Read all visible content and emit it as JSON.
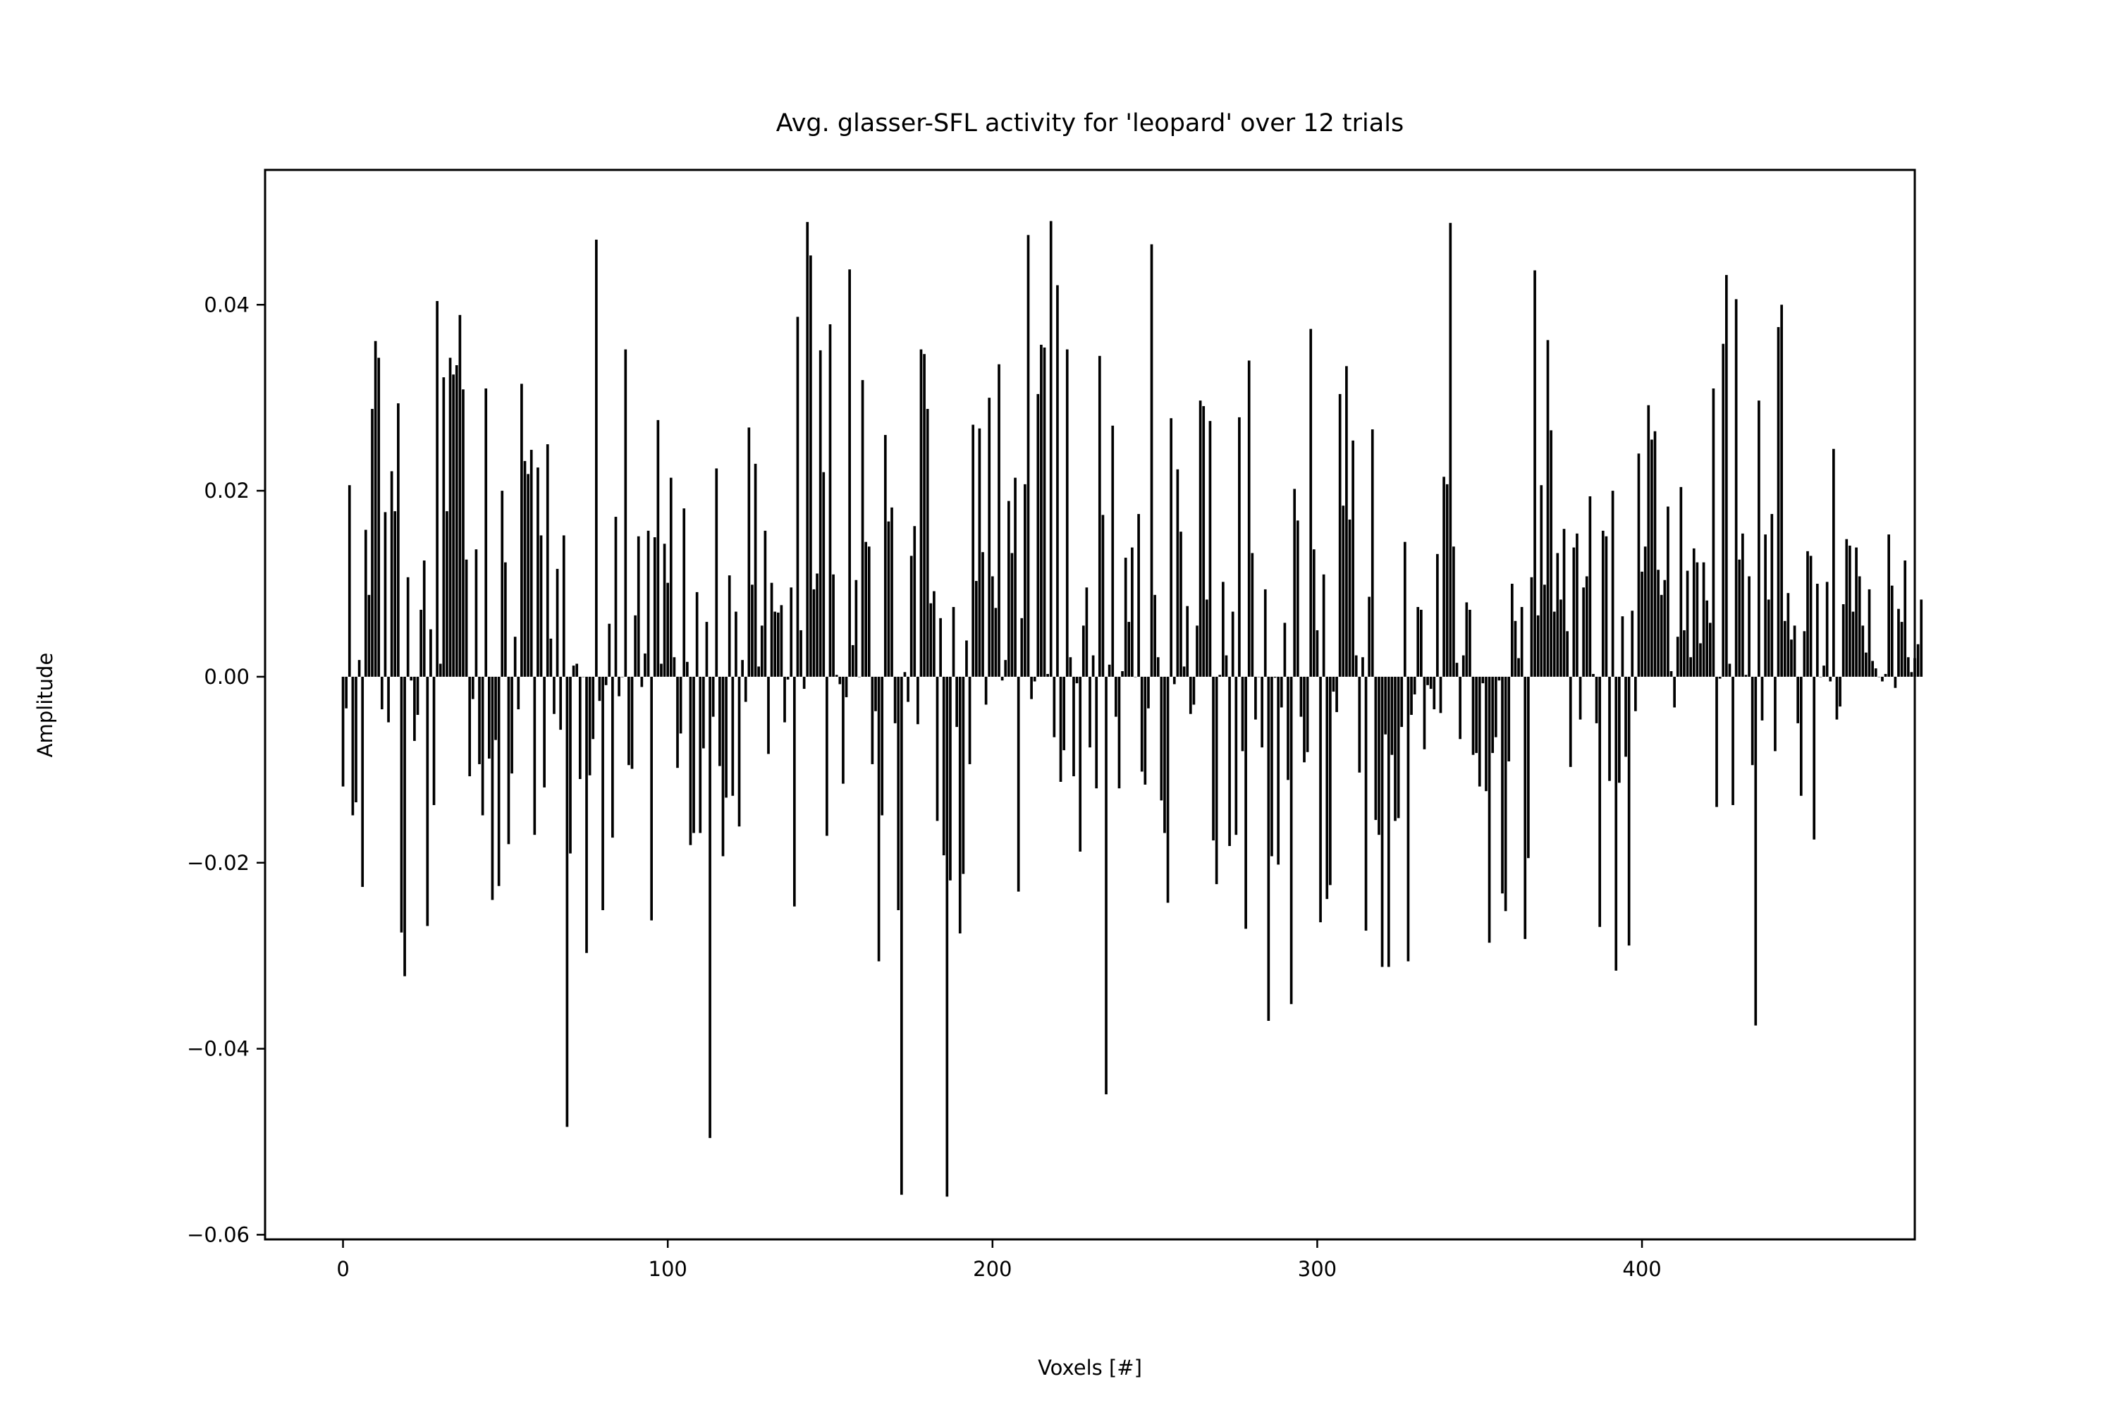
{
  "chart_data": {
    "type": "bar",
    "title": "Avg. glasser-SFL activity for 'leopard' over 12 trials",
    "xlabel": "Voxels [#]",
    "ylabel": "Amplitude",
    "xlim": [
      -24,
      484
    ],
    "ylim": [
      -0.0605,
      0.0545
    ],
    "grid": false,
    "legend": "none",
    "x_tick_values": [
      0,
      100,
      200,
      300,
      400
    ],
    "x_tick_labels": [
      "0",
      "100",
      "200",
      "300",
      "400"
    ],
    "y_tick_values": [
      0.04,
      0.02,
      0.0,
      -0.02,
      -0.04,
      -0.06
    ],
    "y_tick_labels": [
      "0.04",
      "0.02",
      "0.00",
      "−0.02",
      "−0.04",
      "−0.06"
    ],
    "bar_color": "#000000",
    "x_start": 0,
    "values": [
      -0.0118,
      -0.0034,
      0.0206,
      -0.0149,
      -0.0135,
      0.0018,
      -0.0226,
      0.0158,
      0.0088,
      0.0288,
      0.0361,
      0.0343,
      -0.0035,
      0.0177,
      -0.0049,
      0.0221,
      0.0178,
      0.0294,
      -0.0275,
      -0.0322,
      0.0107,
      -0.0004,
      -0.0069,
      -0.0041,
      0.0072,
      0.0125,
      -0.0268,
      0.0051,
      -0.0138,
      0.0404,
      0.0014,
      0.0322,
      0.0178,
      0.0343,
      0.0325,
      0.0335,
      0.0389,
      0.0309,
      0.0126,
      -0.0107,
      -0.0024,
      0.0137,
      -0.0094,
      -0.0149,
      0.031,
      -0.0088,
      -0.024,
      -0.0068,
      -0.0225,
      0.02,
      0.0123,
      -0.018,
      -0.0104,
      0.0043,
      -0.0035,
      0.0315,
      0.0232,
      0.0218,
      0.0244,
      -0.017,
      0.0225,
      0.0152,
      -0.0119,
      0.025,
      0.0041,
      -0.004,
      0.0116,
      -0.0057,
      0.0152,
      -0.0484,
      -0.019,
      0.0012,
      0.0014,
      -0.011,
      0.0,
      -0.0297,
      -0.0106,
      -0.0067,
      0.047,
      -0.0026,
      -0.0251,
      -0.0009,
      0.0057,
      -0.0173,
      0.0172,
      -0.0021,
      0.0,
      0.0352,
      -0.0095,
      -0.0099,
      0.0066,
      0.0151,
      -0.0011,
      0.0025,
      0.0157,
      -0.0262,
      0.015,
      0.0276,
      0.0014,
      0.0143,
      0.0101,
      0.0214,
      0.0021,
      -0.0098,
      -0.0061,
      0.0181,
      0.0016,
      -0.0181,
      -0.0168,
      0.0091,
      -0.0168,
      -0.0077,
      0.0059,
      -0.0496,
      -0.0043,
      0.0224,
      -0.0096,
      -0.0193,
      -0.013,
      0.0109,
      -0.0128,
      0.007,
      -0.0161,
      0.0018,
      -0.0027,
      0.0268,
      0.0099,
      0.0229,
      0.0011,
      0.0055,
      0.0157,
      -0.0083,
      0.0101,
      0.007,
      0.0069,
      0.0077,
      -0.0049,
      -0.0003,
      0.0096,
      -0.0247,
      0.0387,
      0.005,
      -0.0013,
      0.0489,
      0.0453,
      0.0094,
      0.0111,
      0.0351,
      0.022,
      -0.0171,
      0.0379,
      0.011,
      0.0002,
      -0.0008,
      -0.0115,
      -0.0022,
      0.0438,
      0.0034,
      0.0104,
      0.0,
      0.0319,
      0.0145,
      0.014,
      -0.0094,
      -0.0037,
      -0.0306,
      -0.0149,
      0.026,
      0.0167,
      0.0182,
      -0.005,
      -0.0251,
      -0.0557,
      0.0005,
      -0.0027,
      0.013,
      0.0162,
      -0.0051,
      0.0352,
      0.0347,
      0.0288,
      0.0079,
      0.0092,
      -0.0155,
      0.0063,
      -0.0192,
      -0.0559,
      -0.0219,
      0.0075,
      -0.0054,
      -0.0276,
      -0.0212,
      0.0039,
      -0.0094,
      0.0271,
      0.0103,
      0.0267,
      0.0134,
      -0.003,
      0.03,
      0.0108,
      0.0074,
      0.0336,
      -0.0004,
      0.0018,
      0.0189,
      0.0133,
      0.0214,
      -0.0231,
      0.0063,
      0.0207,
      0.0475,
      -0.0024,
      -0.0005,
      0.0304,
      0.0357,
      0.0354,
      0.0003,
      0.049,
      -0.0065,
      0.0421,
      -0.0113,
      -0.0079,
      0.0352,
      0.0021,
      -0.0107,
      -0.0007,
      -0.0188,
      0.0055,
      0.0096,
      -0.0076,
      0.0023,
      -0.012,
      0.0345,
      0.0174,
      -0.0449,
      0.0013,
      0.027,
      -0.0043,
      -0.012,
      0.0006,
      0.0128,
      0.0059,
      0.0139,
      0.0,
      0.0175,
      -0.0102,
      -0.0116,
      -0.0034,
      0.0465,
      0.0088,
      0.0021,
      -0.0133,
      -0.0168,
      -0.0243,
      0.0278,
      -0.0008,
      0.0223,
      0.0156,
      0.0011,
      0.0076,
      -0.004,
      -0.003,
      0.0055,
      0.0297,
      0.0291,
      0.0083,
      0.0275,
      -0.0176,
      -0.0223,
      0.0002,
      0.0102,
      0.0023,
      -0.0182,
      0.007,
      -0.017,
      0.0279,
      -0.008,
      -0.0271,
      0.034,
      0.0133,
      -0.0046,
      0.0,
      -0.0076,
      0.0094,
      -0.037,
      -0.0193,
      -0.0001,
      -0.0202,
      -0.0033,
      0.0058,
      -0.0111,
      -0.0352,
      0.0202,
      0.0168,
      -0.0043,
      -0.0092,
      -0.0081,
      0.0374,
      0.0137,
      0.005,
      -0.0264,
      0.011,
      -0.0239,
      -0.0224,
      -0.0016,
      -0.0038,
      0.0304,
      0.0184,
      0.0334,
      0.0169,
      0.0254,
      0.0023,
      -0.0103,
      0.0021,
      -0.0273,
      0.0086,
      0.0266,
      -0.0154,
      -0.017,
      -0.0312,
      -0.0062,
      -0.0312,
      -0.0084,
      -0.0155,
      -0.0152,
      -0.0054,
      0.0145,
      -0.0306,
      -0.0041,
      -0.0019,
      0.0075,
      0.0072,
      -0.0078,
      -0.0009,
      -0.0013,
      -0.0035,
      0.0132,
      -0.0039,
      0.0215,
      0.0207,
      0.0488,
      0.014,
      0.0015,
      -0.0067,
      0.0023,
      0.008,
      0.0072,
      -0.0084,
      -0.0082,
      -0.0118,
      -0.0007,
      -0.0123,
      -0.0286,
      -0.0082,
      -0.0065,
      -0.0004,
      -0.0233,
      -0.0252,
      -0.0091,
      0.01,
      0.006,
      0.002,
      0.0075,
      -0.0282,
      -0.0195,
      0.0107,
      0.0437,
      0.0066,
      0.0206,
      0.0099,
      0.0362,
      0.0265,
      0.007,
      0.0133,
      0.0083,
      0.0159,
      0.0049,
      -0.0097,
      0.0139,
      0.0154,
      -0.0046,
      0.0096,
      0.0108,
      0.0194,
      0.0003,
      -0.005,
      -0.0269,
      0.0157,
      0.0151,
      -0.0112,
      0.02,
      -0.0316,
      -0.0114,
      0.0065,
      -0.0086,
      -0.0289,
      0.0071,
      -0.0037,
      0.024,
      0.0113,
      0.014,
      0.0292,
      0.0255,
      0.0264,
      0.0115,
      0.0088,
      0.0104,
      0.0183,
      0.0006,
      -0.0033,
      0.0043,
      0.0204,
      0.005,
      0.0114,
      0.0021,
      0.0138,
      0.0123,
      0.0036,
      0.0123,
      0.0082,
      0.0058,
      0.031,
      -0.014,
      -0.0002,
      0.0358,
      0.0432,
      0.0014,
      -0.0138,
      0.0406,
      0.0126,
      0.0154,
      0.0002,
      0.0108,
      -0.0095,
      -0.0375,
      0.0297,
      -0.0047,
      0.0153,
      0.0083,
      0.0175,
      -0.008,
      0.0376,
      0.04,
      0.006,
      0.009,
      0.004,
      0.0055,
      -0.005,
      -0.0128,
      0.0049,
      0.0135,
      0.013,
      -0.0175,
      0.01,
      0.0,
      0.0012,
      0.0102,
      -0.0005,
      0.0245,
      -0.0046,
      -0.0032,
      0.0078,
      0.0148,
      0.0141,
      0.007,
      0.0139,
      0.0108,
      0.0055,
      0.0026,
      0.0094,
      0.0017,
      0.0009,
      0.0,
      -0.0005,
      0.0003,
      0.0153,
      0.0098,
      -0.0012,
      0.0073,
      0.0059,
      0.0125,
      0.0021,
      0.0005,
      0.002,
      0.0035,
      0.0083
    ]
  }
}
